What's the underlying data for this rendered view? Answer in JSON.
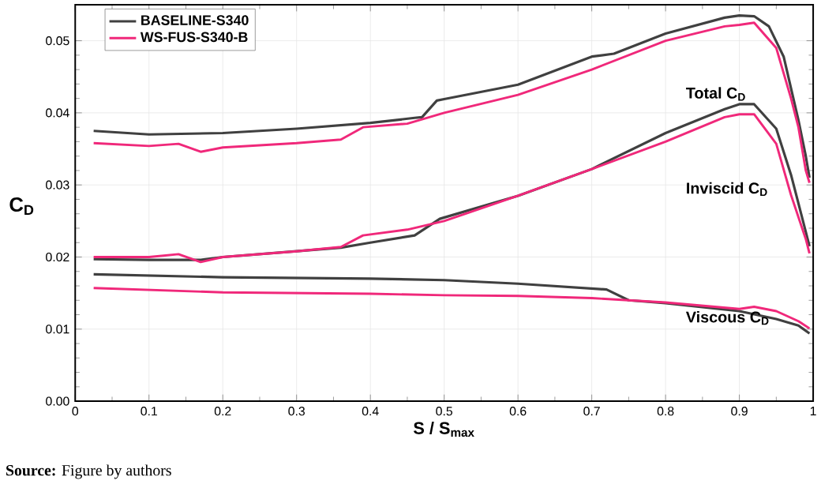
{
  "chart_data": {
    "type": "line",
    "xlabel": "S / S$_{max}$",
    "ylabel": "C$_{D}$",
    "xlim": [
      0,
      1
    ],
    "ylim": [
      0,
      0.055
    ],
    "xticks": [
      {
        "value": 0,
        "label": "0"
      },
      {
        "value": 0.1,
        "label": "0.1"
      },
      {
        "value": 0.2,
        "label": "0.2"
      },
      {
        "value": 0.3,
        "label": "0.3"
      },
      {
        "value": 0.4,
        "label": "0.4"
      },
      {
        "value": 0.5,
        "label": "0.5"
      },
      {
        "value": 0.6,
        "label": "0.6"
      },
      {
        "value": 0.7,
        "label": "0.7"
      },
      {
        "value": 0.8,
        "label": "0.8"
      },
      {
        "value": 0.9,
        "label": "0.9"
      },
      {
        "value": 1,
        "label": "1"
      }
    ],
    "yticks": [
      {
        "value": 0,
        "label": "0.00"
      },
      {
        "value": 0.01,
        "label": "0.01"
      },
      {
        "value": 0.02,
        "label": "0.02"
      },
      {
        "value": 0.03,
        "label": "0.03"
      },
      {
        "value": 0.04,
        "label": "0.04"
      },
      {
        "value": 0.05,
        "label": "0.05"
      }
    ],
    "grid": true,
    "legend": "top left",
    "marker": "none",
    "line_style": "solid",
    "series": [
      {
        "name": "BASELINE-S340",
        "color": "#404040",
        "x": [
          0.025,
          0.1,
          0.2,
          0.3,
          0.4,
          0.46,
          0.47,
          0.49,
          0.5,
          0.6,
          0.7,
          0.73,
          0.8,
          0.88,
          0.9,
          0.92,
          0.94,
          0.96,
          0.98,
          0.99,
          0.995
        ],
        "values": [
          0.0375,
          0.037,
          0.0372,
          0.0378,
          0.0386,
          0.0393,
          0.0394,
          0.0417,
          0.0419,
          0.0439,
          0.0478,
          0.0482,
          0.051,
          0.0532,
          0.0535,
          0.0534,
          0.052,
          0.0478,
          0.039,
          0.034,
          0.031
        ]
      },
      {
        "name": "WS-FUS-S340-B",
        "color": "#f0287a",
        "x": [
          0.025,
          0.1,
          0.14,
          0.17,
          0.2,
          0.3,
          0.36,
          0.39,
          0.45,
          0.5,
          0.6,
          0.7,
          0.8,
          0.88,
          0.9,
          0.92,
          0.95,
          0.97,
          0.98,
          0.99,
          0.995
        ],
        "values": [
          0.0358,
          0.0354,
          0.0357,
          0.0346,
          0.0352,
          0.0358,
          0.0363,
          0.038,
          0.0385,
          0.04,
          0.0425,
          0.046,
          0.05,
          0.052,
          0.0522,
          0.0525,
          0.049,
          0.042,
          0.038,
          0.032,
          0.0303
        ]
      },
      {
        "color": "#404040",
        "x": [
          0.025,
          0.1,
          0.17,
          0.2,
          0.3,
          0.36,
          0.4,
          0.46,
          0.494,
          0.6,
          0.7,
          0.8,
          0.88,
          0.9,
          0.92,
          0.95,
          0.97,
          0.99,
          0.995
        ],
        "values": [
          0.0197,
          0.0196,
          0.0196,
          0.02,
          0.0208,
          0.0213,
          0.022,
          0.023,
          0.0253,
          0.0285,
          0.0322,
          0.0372,
          0.0405,
          0.0412,
          0.0412,
          0.0378,
          0.0314,
          0.0235,
          0.0215
        ]
      },
      {
        "color": "#f0287a",
        "x": [
          0.025,
          0.1,
          0.14,
          0.17,
          0.2,
          0.3,
          0.36,
          0.39,
          0.45,
          0.5,
          0.6,
          0.7,
          0.8,
          0.88,
          0.9,
          0.92,
          0.95,
          0.97,
          0.99,
          0.995
        ],
        "values": [
          0.02,
          0.02,
          0.0204,
          0.0193,
          0.02,
          0.0208,
          0.0214,
          0.023,
          0.0238,
          0.025,
          0.0285,
          0.0322,
          0.036,
          0.0394,
          0.0398,
          0.0398,
          0.0357,
          0.0286,
          0.0225,
          0.0205
        ]
      },
      {
        "color": "#404040",
        "x": [
          0.025,
          0.2,
          0.4,
          0.5,
          0.6,
          0.72,
          0.75,
          0.8,
          0.9,
          0.95,
          0.98,
          0.995
        ],
        "values": [
          0.0176,
          0.0172,
          0.017,
          0.0168,
          0.0163,
          0.0155,
          0.014,
          0.0136,
          0.0125,
          0.0114,
          0.0105,
          0.0094
        ]
      },
      {
        "color": "#f0287a",
        "x": [
          0.025,
          0.2,
          0.4,
          0.5,
          0.6,
          0.7,
          0.8,
          0.9,
          0.92,
          0.95,
          0.98,
          0.995
        ],
        "values": [
          0.0157,
          0.0151,
          0.0149,
          0.0147,
          0.0146,
          0.0143,
          0.0137,
          0.0128,
          0.0131,
          0.0125,
          0.0111,
          0.0101
        ]
      }
    ],
    "annotations": [
      "Total C$_{D}$",
      "Inviscid C$_{D}$",
      "Viscous C$_{D}$",
      "**Source:** Figure by authors"
    ]
  }
}
